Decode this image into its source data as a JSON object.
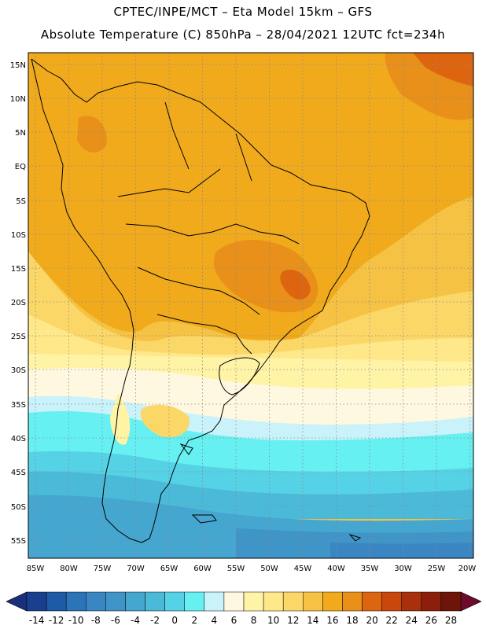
{
  "title": {
    "line1": "CPTEC/INPE/MCT –  Eta Model 15km – GFS",
    "line2": "Absolute Temperature (C) 850hPa – 28/04/2021 12UTC fct=234h"
  },
  "axes": {
    "lat_labels": [
      "15N",
      "10N",
      "5N",
      "EQ",
      "5S",
      "10S",
      "15S",
      "20S",
      "25S",
      "30S",
      "35S",
      "40S",
      "45S",
      "50S",
      "55S"
    ],
    "lon_labels": [
      "85W",
      "80W",
      "75W",
      "70W",
      "65W",
      "60W",
      "55W",
      "50W",
      "45W",
      "40W",
      "35W",
      "30W",
      "25W",
      "20W"
    ]
  },
  "colorbar": {
    "labels": [
      "-14",
      "-12",
      "-10",
      "-8",
      "-6",
      "-4",
      "-2",
      "0",
      "2",
      "4",
      "6",
      "8",
      "10",
      "12",
      "14",
      "16",
      "18",
      "20",
      "22",
      "24",
      "26",
      "28"
    ],
    "colors": [
      "#1a3f8f",
      "#1f5aa6",
      "#2b74b8",
      "#3a86c3",
      "#3f95c8",
      "#45a6d0",
      "#4bbad8",
      "#56d2e6",
      "#66f0f2",
      "#c9f2fb",
      "#fff8e0",
      "#fff3a6",
      "#ffe88a",
      "#fbd768",
      "#f5c244",
      "#f0aa1c",
      "#e8901a",
      "#dd6510",
      "#c9470c",
      "#a9300c",
      "#8c1f0c",
      "#6e150a"
    ]
  },
  "icons": {
    "left_arrow": "triangle-left-icon",
    "right_arrow": "triangle-right-icon"
  }
}
